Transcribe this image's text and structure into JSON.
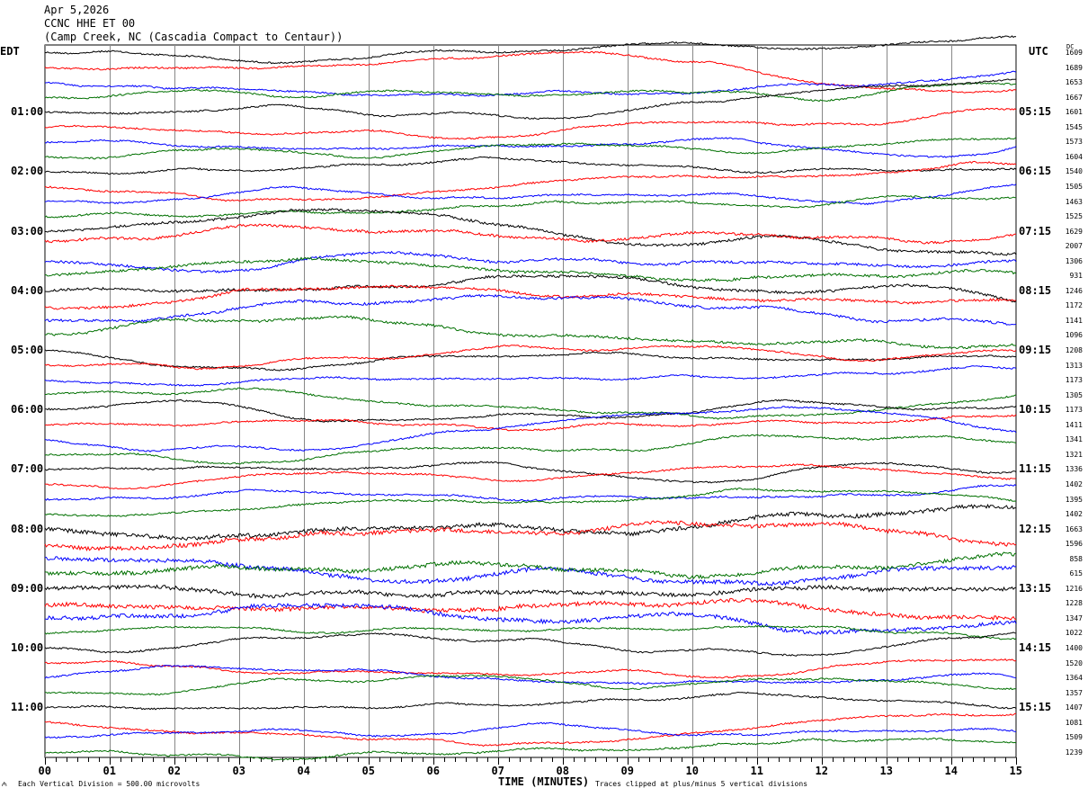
{
  "header": {
    "date": "Apr 5,2026",
    "station": "CCNC HHE ET 00",
    "location": "(Camp Creek, NC (Cascadia Compact to Centaur))"
  },
  "chart_data": {
    "type": "line",
    "title": "CCNC HHE ET 00",
    "xlabel": "TIME (MINUTES)",
    "left_axis_label": "EDT",
    "right_axis_label": "UTC",
    "dc_label": "DC",
    "xlim": [
      0,
      15
    ],
    "x_ticks": [
      "00",
      "01",
      "02",
      "03",
      "04",
      "05",
      "06",
      "07",
      "08",
      "09",
      "10",
      "11",
      "12",
      "13",
      "14",
      "15"
    ],
    "rows_per_hour": 4,
    "left_hour_labels": [
      "01:00",
      "02:00",
      "03:00",
      "04:00",
      "05:00",
      "06:00",
      "07:00",
      "08:00",
      "09:00",
      "10:00",
      "11:00"
    ],
    "right_hour_labels": [
      "05:15",
      "06:15",
      "07:15",
      "08:15",
      "09:15",
      "10:15",
      "11:15",
      "12:15",
      "13:15",
      "14:15",
      "15:15"
    ],
    "trace_colors": [
      "#000000",
      "#ff0000",
      "#0000ff",
      "#007000"
    ],
    "dc_offsets": [
      1609,
      1689,
      1653,
      1667,
      1601,
      1545,
      1573,
      1604,
      1540,
      1505,
      1463,
      1525,
      1629,
      2007,
      1306,
      931,
      1246,
      1172,
      1141,
      1096,
      1208,
      1313,
      1173,
      1305,
      1173,
      1411,
      1341,
      1321,
      1336,
      1402,
      1395,
      1402,
      1663,
      1596,
      858,
      615,
      1216,
      1228,
      1347,
      1022,
      1400,
      1520,
      1364,
      1357,
      1407,
      1081,
      1509,
      1239
    ],
    "scale_note": "Each Vertical Division =  500.00 microvolts",
    "clip_note": "Traces clipped at plus/minus 5 vertical divisions"
  }
}
